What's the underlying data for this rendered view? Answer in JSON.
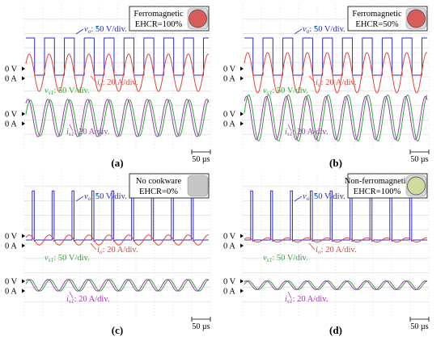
{
  "figure": {
    "panels": [
      {
        "id": "a",
        "label": "(a)",
        "cookware_label": "Ferromagnetic",
        "ehcr_label": "EHCR=100%",
        "disk_color": "#d95c5a",
        "disk_bg": "#d8d8d8",
        "zero_labels": {
          "upper_v": "0 V",
          "upper_a": "0 A",
          "lower_v": "0 V",
          "lower_a": "0 A"
        },
        "annotations": {
          "vo": {
            "sym": "v",
            "sub": "o",
            "rest": ": 50 V/div."
          },
          "io": {
            "sym": "i",
            "sub": "o",
            "rest": ": 20 A/div."
          },
          "vs": {
            "sym": "v",
            "sub": "s1",
            "rest": ": 50 V/div."
          },
          "is": {
            "sym": "i",
            "sub": "s1",
            "rest": ": 20 A/div."
          }
        },
        "time_scale": "50 µs"
      },
      {
        "id": "b",
        "label": "(b)",
        "cookware_label": "Ferromagnetic",
        "ehcr_label": "EHCR=50%",
        "disk_color": "#d95c5a",
        "disk_bg": "#d8d8d8",
        "zero_labels": {
          "upper_v": "0 V",
          "upper_a": "0 A",
          "lower_v": "0 V",
          "lower_a": "0 A"
        },
        "annotations": {
          "vo": {
            "sym": "v",
            "sub": "o",
            "rest": ": 50 V/div."
          },
          "io": {
            "sym": "i",
            "sub": "o",
            "rest": ": 20 A/div."
          },
          "vs": {
            "sym": "v",
            "sub": "s1",
            "rest": ": 50 V/div."
          },
          "is": {
            "sym": "i",
            "sub": "s1",
            "rest": ": 20 A/div."
          }
        },
        "time_scale": "50 µs"
      },
      {
        "id": "c",
        "label": "(c)",
        "cookware_label": "No cookware",
        "ehcr_label": "EHCR=0%",
        "disk_color": "#c6c6c6",
        "disk_bg": "#c6c6c6",
        "zero_labels": {
          "upper_v": "0 V",
          "upper_a": "0 A",
          "lower_v": "0 V",
          "lower_a": "0 A"
        },
        "annotations": {
          "vo": {
            "sym": "v",
            "sub": "o",
            "rest": ": 50 V/div."
          },
          "io": {
            "sym": "i",
            "sub": "o",
            "rest": ": 20 A/div."
          },
          "vs": {
            "sym": "v",
            "sub": "s1",
            "rest": ": 50 V/div."
          },
          "is": {
            "sym": "i",
            "sub": "s1",
            "rest": ": 20 A/div."
          }
        },
        "time_scale": "50 µs"
      },
      {
        "id": "d",
        "label": "(d)",
        "cookware_label": "Non-ferromagnetic",
        "ehcr_label": "EHCR=100%",
        "disk_color": "#cfdca0",
        "disk_bg": "#d8d8d8",
        "zero_labels": {
          "upper_v": "0 V",
          "upper_a": "0 A",
          "lower_v": "0 V",
          "lower_a": "0 A"
        },
        "annotations": {
          "vo": {
            "sym": "v",
            "sub": "o",
            "rest": ": 50 V/div."
          },
          "io": {
            "sym": "i",
            "sub": "o",
            "rest": ": 20 A/div."
          },
          "vs": {
            "sym": "v",
            "sub": "s1",
            "rest": ": 50 V/div."
          },
          "is": {
            "sym": "i",
            "sub": "s1",
            "rest": ": 20 A/div."
          }
        },
        "time_scale": "50 µs"
      }
    ]
  },
  "colors": {
    "vo": "#2d2dc8",
    "io": "#e0443a",
    "vs": "#2fa63a",
    "is": "#9b3bb0",
    "marker": "#34c8d8"
  },
  "chart_data": [
    {
      "type": "line",
      "panel": "a",
      "x_unit": "µs",
      "x_range": [
        0,
        250
      ],
      "switching_frequency_khz": 45,
      "series": [
        {
          "name": "vo",
          "scale": "50 V/div.",
          "shape": "square",
          "amplitude_div": 1.0
        },
        {
          "name": "io",
          "scale": "20 A/div.",
          "shape": "sine",
          "amplitude_div": 1.3
        },
        {
          "name": "vs1",
          "scale": "50 V/div.",
          "shape": "sine",
          "amplitude_div": 1.25
        },
        {
          "name": "is1",
          "scale": "20 A/div.",
          "shape": "sine",
          "amplitude_div": 1.3
        }
      ]
    },
    {
      "type": "line",
      "panel": "b",
      "x_unit": "µs",
      "x_range": [
        0,
        250
      ],
      "switching_frequency_khz": 45,
      "series": [
        {
          "name": "vo",
          "scale": "50 V/div.",
          "shape": "square",
          "amplitude_div": 1.0
        },
        {
          "name": "io",
          "scale": "20 A/div.",
          "shape": "sine",
          "amplitude_div": 1.4
        },
        {
          "name": "vs1",
          "scale": "50 V/div.",
          "shape": "sine",
          "amplitude_div": 1.6
        },
        {
          "name": "is1",
          "scale": "20 A/div.",
          "shape": "sine",
          "amplitude_div": 1.5
        }
      ]
    },
    {
      "type": "line",
      "panel": "c",
      "x_unit": "µs",
      "x_range": [
        0,
        250
      ],
      "switching_frequency_khz": 45,
      "series": [
        {
          "name": "vo",
          "scale": "50 V/div.",
          "shape": "pulse",
          "amplitude_div": 2.2
        },
        {
          "name": "io",
          "scale": "20 A/div.",
          "shape": "sine",
          "amplitude_div": 0.35
        },
        {
          "name": "vs1",
          "scale": "50 V/div.",
          "shape": "sine",
          "amplitude_div": 0.4
        },
        {
          "name": "is1",
          "scale": "20 A/div.",
          "shape": "sine",
          "amplitude_div": 0.4
        }
      ]
    },
    {
      "type": "line",
      "panel": "d",
      "x_unit": "µs",
      "x_range": [
        0,
        250
      ],
      "switching_frequency_khz": 45,
      "series": [
        {
          "name": "vo",
          "scale": "50 V/div.",
          "shape": "pulse",
          "amplitude_div": 2.2
        },
        {
          "name": "io",
          "scale": "20 A/div.",
          "shape": "sine",
          "amplitude_div": 0.15
        },
        {
          "name": "vs1",
          "scale": "50 V/div.",
          "shape": "sine",
          "amplitude_div": 0.3
        },
        {
          "name": "is1",
          "scale": "20 A/div.",
          "shape": "sine",
          "amplitude_div": 0.3
        }
      ]
    }
  ]
}
